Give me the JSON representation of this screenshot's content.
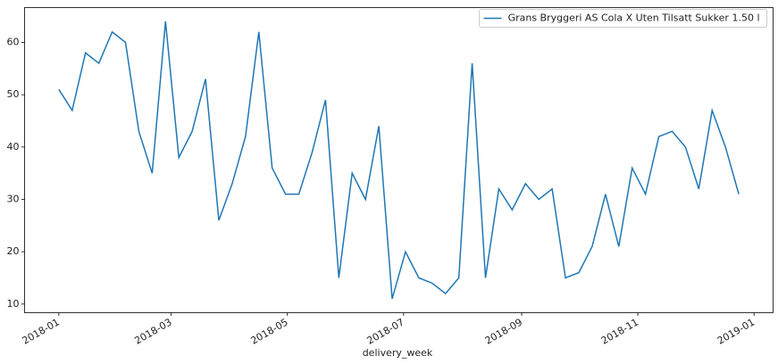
{
  "chart_data": {
    "type": "line",
    "x_label": "delivery_week",
    "x": [
      "2018-01-01",
      "2018-01-08",
      "2018-01-15",
      "2018-01-22",
      "2018-01-29",
      "2018-02-05",
      "2018-02-12",
      "2018-02-19",
      "2018-02-26",
      "2018-03-05",
      "2018-03-12",
      "2018-03-19",
      "2018-03-26",
      "2018-04-02",
      "2018-04-09",
      "2018-04-16",
      "2018-04-23",
      "2018-04-30",
      "2018-05-07",
      "2018-05-14",
      "2018-05-21",
      "2018-05-28",
      "2018-06-04",
      "2018-06-11",
      "2018-06-18",
      "2018-06-25",
      "2018-07-02",
      "2018-07-09",
      "2018-07-16",
      "2018-07-23",
      "2018-07-30",
      "2018-08-06",
      "2018-08-13",
      "2018-08-20",
      "2018-08-27",
      "2018-09-03",
      "2018-09-10",
      "2018-09-17",
      "2018-09-24",
      "2018-10-01",
      "2018-10-08",
      "2018-10-15",
      "2018-10-22",
      "2018-10-29",
      "2018-11-05",
      "2018-11-12",
      "2018-11-19",
      "2018-11-26",
      "2018-12-03",
      "2018-12-10",
      "2018-12-17",
      "2018-12-24"
    ],
    "series": [
      {
        "name": "Grans Bryggeri AS Cola X Uten Tilsatt Sukker 1.50 l",
        "color": "#1f77b4",
        "values": [
          51,
          47,
          58,
          56,
          62,
          60,
          43,
          35,
          64,
          38,
          43,
          53,
          26,
          33,
          42,
          62,
          36,
          31,
          31,
          39,
          49,
          15,
          35,
          30,
          44,
          11,
          20,
          15,
          14,
          12,
          15,
          56,
          15,
          32,
          28,
          33,
          30,
          32,
          15,
          16,
          21,
          31,
          21,
          36,
          31,
          42,
          43,
          40,
          32,
          47,
          40,
          31
        ]
      }
    ],
    "xlim": [
      "2017-12-14",
      "2019-01-11"
    ],
    "xticks": [
      "2018-01",
      "2018-03",
      "2018-05",
      "2018-07",
      "2018-09",
      "2018-11",
      "2019-01"
    ],
    "ylim": [
      8.35,
      66.65
    ],
    "yticks": [
      10,
      20,
      30,
      40,
      50,
      60
    ],
    "legend": "upper right"
  }
}
